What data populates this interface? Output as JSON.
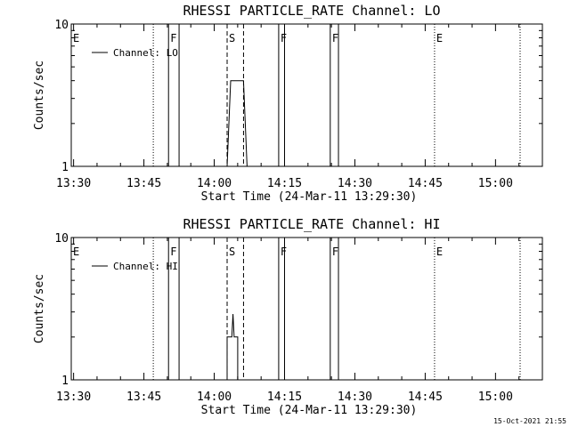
{
  "footer": {
    "timestamp": "15-Oct-2021 21:55"
  },
  "chart_data": [
    {
      "type": "line",
      "title": "RHESSI PARTICLE_RATE Channel: LO",
      "ylabel": "Counts/sec",
      "xlabel": "Start Time (24-Mar-11 13:29:30)",
      "yscale": "log",
      "ylim": [
        1,
        10
      ],
      "ytick_labels": [
        {
          "value": 1,
          "label": "1"
        },
        {
          "value": 10,
          "label": "10"
        }
      ],
      "xlim": [
        "13:29:30",
        "15:10:00"
      ],
      "xtick_labels": [
        "13:30",
        "13:45",
        "14:00",
        "14:15",
        "14:30",
        "14:45",
        "15:00"
      ],
      "legend": {
        "position": "top-left",
        "entries": [
          "Channel: LO"
        ]
      },
      "series": [
        {
          "name": "Channel: LO",
          "points": [
            [
              "14:02:45",
              1
            ],
            [
              "14:03:30",
              4.0
            ],
            [
              "14:06:15",
              4.0
            ],
            [
              "14:07:00",
              1
            ]
          ]
        }
      ],
      "markers": [
        {
          "label": "E",
          "time": "13:29:30",
          "style": "dotted"
        },
        {
          "label": "",
          "time": "13:47:00",
          "style": "dotted"
        },
        {
          "label": "F",
          "time": "13:50:15",
          "style": "solid"
        },
        {
          "label": "",
          "time": "13:52:30",
          "style": "solid"
        },
        {
          "label": "S",
          "time": "14:02:45",
          "style": "dashed"
        },
        {
          "label": "",
          "time": "14:06:15",
          "style": "dashed"
        },
        {
          "label": "F",
          "time": "14:13:45",
          "style": "solid"
        },
        {
          "label": "",
          "time": "14:15:00",
          "style": "solid"
        },
        {
          "label": "F",
          "time": "14:24:45",
          "style": "solid"
        },
        {
          "label": "",
          "time": "14:26:30",
          "style": "solid"
        },
        {
          "label": "E",
          "time": "14:47:00",
          "style": "dotted"
        },
        {
          "label": "",
          "time": "15:05:15",
          "style": "dotted"
        }
      ]
    },
    {
      "type": "line",
      "title": "RHESSI PARTICLE_RATE Channel: HI",
      "ylabel": "Counts/sec",
      "xlabel": "Start Time (24-Mar-11 13:29:30)",
      "yscale": "log",
      "ylim": [
        1,
        10
      ],
      "ytick_labels": [
        {
          "value": 1,
          "label": "1"
        },
        {
          "value": 10,
          "label": "10"
        }
      ],
      "xlim": [
        "13:29:30",
        "15:10:00"
      ],
      "xtick_labels": [
        "13:30",
        "13:45",
        "14:00",
        "14:15",
        "14:30",
        "14:45",
        "15:00"
      ],
      "legend": {
        "position": "top-left",
        "entries": [
          "Channel: HI"
        ]
      },
      "series": [
        {
          "name": "Channel: HI",
          "points": [
            [
              "14:02:45",
              1
            ],
            [
              "14:02:45",
              2.0
            ],
            [
              "14:03:45",
              2.0
            ],
            [
              "14:04:00",
              2.9
            ],
            [
              "14:04:15",
              2.0
            ],
            [
              "14:05:00",
              2.0
            ],
            [
              "14:05:00",
              1
            ]
          ]
        }
      ],
      "markers": [
        {
          "label": "E",
          "time": "13:29:30",
          "style": "dotted"
        },
        {
          "label": "",
          "time": "13:47:00",
          "style": "dotted"
        },
        {
          "label": "F",
          "time": "13:50:15",
          "style": "solid"
        },
        {
          "label": "",
          "time": "13:52:30",
          "style": "solid"
        },
        {
          "label": "S",
          "time": "14:02:45",
          "style": "dashed"
        },
        {
          "label": "",
          "time": "14:06:15",
          "style": "dashed"
        },
        {
          "label": "F",
          "time": "14:13:45",
          "style": "solid"
        },
        {
          "label": "",
          "time": "14:15:00",
          "style": "solid"
        },
        {
          "label": "F",
          "time": "14:24:45",
          "style": "solid"
        },
        {
          "label": "",
          "time": "14:26:30",
          "style": "solid"
        },
        {
          "label": "E",
          "time": "14:47:00",
          "style": "dotted"
        },
        {
          "label": "",
          "time": "15:05:15",
          "style": "dotted"
        }
      ]
    }
  ]
}
